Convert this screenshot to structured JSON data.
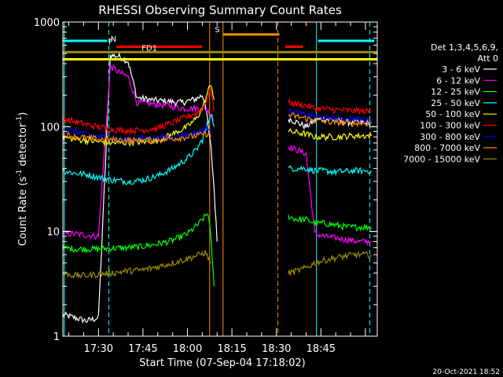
{
  "chart_data": {
    "type": "line",
    "title": "RHESSI Observing Summary Count Rates",
    "xlabel": "Start Time (07-Sep-04 17:18:02)",
    "ylabel_main": "Count Rate (s",
    "ylabel_sup1": "-1",
    "ylabel_mid": " detector",
    "ylabel_sup2": "-1",
    "ylabel_end": ")",
    "yscale": "log",
    "ylim": [
      1,
      1000
    ],
    "xlim_min": [
      18,
      124
    ],
    "x_ticks": [
      {
        "m": 30,
        "label": "17:30"
      },
      {
        "m": 45,
        "label": "17:45"
      },
      {
        "m": 60,
        "label": "18:00"
      },
      {
        "m": 75,
        "label": "18:15"
      },
      {
        "m": 90,
        "label": "18:30"
      },
      {
        "m": 105,
        "label": "18:45"
      }
    ],
    "y_ticks": [
      {
        "v": 1,
        "label": "1"
      },
      {
        "v": 10,
        "label": "10"
      },
      {
        "v": 100,
        "label": "100"
      },
      {
        "v": 1000,
        "label": "1000"
      }
    ],
    "legend_header": [
      "Det 1,3,4,5,6,9,",
      "Att 0"
    ],
    "legend_placement": "right",
    "footer_date": "20-Oct-2021 18:52",
    "series": [
      {
        "name": "3 - 6 keV",
        "color": "#ffffff",
        "points": [
          [
            18,
            1.6
          ],
          [
            22,
            1.5
          ],
          [
            26,
            1.4
          ],
          [
            30,
            1.5
          ],
          [
            34,
            480
          ],
          [
            37,
            470
          ],
          [
            40,
            420
          ],
          [
            43,
            190
          ],
          [
            48,
            180
          ],
          [
            53,
            175
          ],
          [
            58,
            170
          ],
          [
            63,
            185
          ],
          [
            65,
            200
          ],
          [
            66,
            170
          ],
          [
            68,
            60
          ],
          [
            69,
            25
          ],
          [
            70,
            8
          ],
          "gap",
          [
            94,
            120
          ],
          [
            97,
            110
          ],
          [
            100,
            100
          ],
          [
            103,
            115
          ],
          [
            106,
            120
          ],
          [
            110,
            115
          ],
          [
            114,
            110
          ],
          [
            120,
            110
          ],
          [
            122,
            110
          ]
        ]
      },
      {
        "name": "6 - 12 keV",
        "color": "#ff00ff",
        "points": [
          [
            18,
            9.5
          ],
          [
            22,
            9.5
          ],
          [
            26,
            9.2
          ],
          [
            30,
            9.0
          ],
          [
            34,
            380
          ],
          [
            37,
            330
          ],
          [
            40,
            300
          ],
          [
            43,
            170
          ],
          [
            48,
            165
          ],
          [
            53,
            160
          ],
          [
            58,
            150
          ],
          [
            63,
            150
          ],
          [
            66,
            150
          ],
          [
            68,
            130
          ],
          [
            69,
            100
          ],
          "gap",
          [
            94,
            65
          ],
          [
            97,
            60
          ],
          [
            100,
            55
          ],
          [
            103,
            9.5
          ],
          [
            106,
            9
          ],
          [
            112,
            8.5
          ],
          [
            118,
            8
          ],
          [
            122,
            8
          ]
        ]
      },
      {
        "name": "12 - 25 keV",
        "color": "#00ff00",
        "points": [
          [
            18,
            7
          ],
          [
            22,
            6.8
          ],
          [
            26,
            6.8
          ],
          [
            30,
            6.8
          ],
          [
            34,
            6.9
          ],
          [
            40,
            7
          ],
          [
            45,
            7.2
          ],
          [
            50,
            7.6
          ],
          [
            55,
            8.2
          ],
          [
            60,
            9.5
          ],
          [
            64,
            12
          ],
          [
            66,
            14
          ],
          [
            67,
            15
          ],
          [
            68,
            8
          ],
          [
            69,
            3
          ],
          "gap",
          [
            94,
            14
          ],
          [
            97,
            13
          ],
          [
            100,
            13
          ],
          [
            103,
            12
          ],
          [
            106,
            12
          ],
          [
            110,
            11.5
          ],
          [
            114,
            11
          ],
          [
            120,
            11
          ],
          [
            122,
            11
          ]
        ]
      },
      {
        "name": "25 - 50 keV",
        "color": "#00ffff",
        "points": [
          [
            18,
            38
          ],
          [
            22,
            36
          ],
          [
            26,
            35
          ],
          [
            30,
            33
          ],
          [
            35,
            31
          ],
          [
            40,
            30
          ],
          [
            45,
            31
          ],
          [
            50,
            34
          ],
          [
            55,
            40
          ],
          [
            60,
            50
          ],
          [
            63,
            60
          ],
          [
            65,
            75
          ],
          [
            66,
            90
          ],
          [
            67,
            110
          ],
          [
            68,
            140
          ],
          [
            69,
            100
          ],
          "gap",
          [
            94,
            40
          ],
          [
            97,
            40
          ],
          [
            100,
            40
          ],
          [
            103,
            38
          ],
          [
            106,
            38
          ],
          [
            110,
            37
          ],
          [
            116,
            38
          ],
          [
            122,
            38
          ]
        ]
      },
      {
        "name": "50 - 100 keV",
        "color": "#ffff00",
        "points": [
          [
            18,
            80
          ],
          [
            22,
            76
          ],
          [
            26,
            74
          ],
          [
            30,
            72
          ],
          [
            35,
            70
          ],
          [
            40,
            71
          ],
          [
            45,
            72
          ],
          [
            50,
            74
          ],
          [
            55,
            85
          ],
          [
            60,
            100
          ],
          [
            63,
            120
          ],
          [
            65,
            150
          ],
          [
            66,
            180
          ],
          [
            67,
            220
          ],
          [
            68,
            260
          ],
          [
            69,
            180
          ],
          "gap",
          [
            94,
            90
          ],
          [
            97,
            88
          ],
          [
            100,
            85
          ],
          [
            103,
            80
          ],
          [
            106,
            80
          ],
          [
            110,
            80
          ],
          [
            116,
            82
          ],
          [
            122,
            82
          ]
        ]
      },
      {
        "name": "100 - 300 keV",
        "color": "#ff0000",
        "points": [
          [
            18,
            120
          ],
          [
            22,
            112
          ],
          [
            26,
            105
          ],
          [
            30,
            100
          ],
          [
            35,
            94
          ],
          [
            40,
            92
          ],
          [
            45,
            93
          ],
          [
            50,
            97
          ],
          [
            55,
            110
          ],
          [
            60,
            125
          ],
          [
            63,
            135
          ],
          [
            65,
            150
          ],
          [
            66,
            170
          ],
          [
            67,
            200
          ],
          [
            68,
            230
          ],
          [
            69,
            140
          ],
          "gap",
          [
            94,
            170
          ],
          [
            97,
            165
          ],
          [
            100,
            160
          ],
          [
            103,
            150
          ],
          [
            106,
            148
          ],
          [
            110,
            145
          ],
          [
            116,
            142
          ],
          [
            122,
            140
          ]
        ]
      },
      {
        "name": "300 - 800 keV",
        "color": "#0000ff",
        "points": [
          [
            18,
            95
          ],
          [
            22,
            90
          ],
          [
            26,
            85
          ],
          [
            30,
            80
          ],
          [
            35,
            77
          ],
          [
            40,
            75
          ],
          [
            45,
            76
          ],
          [
            50,
            78
          ],
          [
            55,
            80
          ],
          [
            60,
            84
          ],
          [
            63,
            88
          ],
          [
            65,
            92
          ],
          [
            66,
            95
          ],
          [
            67,
            100
          ],
          [
            68,
            95
          ],
          "gap",
          [
            94,
            140
          ],
          [
            97,
            135
          ],
          [
            100,
            130
          ],
          [
            103,
            125
          ],
          [
            106,
            122
          ],
          [
            110,
            120
          ],
          [
            116,
            118
          ],
          [
            122,
            115
          ]
        ]
      },
      {
        "name": "800 - 7000 keV",
        "color": "#ff8c00",
        "points": [
          [
            18,
            85
          ],
          [
            22,
            81
          ],
          [
            26,
            78
          ],
          [
            30,
            76
          ],
          [
            35,
            75
          ],
          [
            40,
            74
          ],
          [
            45,
            74
          ],
          [
            50,
            75
          ],
          [
            55,
            77
          ],
          [
            60,
            80
          ],
          [
            63,
            82
          ],
          [
            65,
            84
          ],
          [
            66,
            85
          ],
          [
            67,
            86
          ],
          [
            68,
            80
          ],
          "gap",
          [
            94,
            130
          ],
          [
            97,
            125
          ],
          [
            100,
            120
          ],
          [
            103,
            115
          ],
          [
            106,
            112
          ],
          [
            110,
            110
          ],
          [
            116,
            108
          ],
          [
            122,
            108
          ]
        ]
      },
      {
        "name": "7000 - 15000 keV",
        "color": "#9b8a00",
        "points": [
          [
            18,
            4
          ],
          [
            22,
            3.8
          ],
          [
            26,
            3.8
          ],
          [
            30,
            3.9
          ],
          [
            34,
            4
          ],
          [
            40,
            4.2
          ],
          [
            45,
            4.3
          ],
          [
            50,
            4.6
          ],
          [
            55,
            5
          ],
          [
            60,
            5.5
          ],
          [
            64,
            6
          ],
          [
            66,
            6.3
          ],
          [
            68,
            5
          ],
          "gap",
          [
            94,
            4
          ],
          [
            97,
            4.2
          ],
          [
            100,
            4.5
          ],
          [
            103,
            5
          ],
          [
            106,
            5.3
          ],
          [
            110,
            5.6
          ],
          [
            116,
            6
          ],
          [
            122,
            6
          ]
        ]
      }
    ],
    "flags": [
      {
        "label": "N",
        "color": "#00ffff",
        "level": 660,
        "segments": [
          [
            18,
            33
          ],
          [
            104,
            123
          ]
        ]
      },
      {
        "label": "F",
        "color": "#ff0000",
        "level": 580,
        "segments": [
          [
            36,
            65
          ],
          [
            93,
            99
          ]
        ]
      },
      {
        "label": "FD1",
        "color": "#9b8a00",
        "level": 515,
        "segments": [
          [
            18,
            124
          ]
        ]
      },
      {
        "label": "S",
        "color": "#ff8c00",
        "level": 760,
        "segments": [
          [
            72,
            91
          ]
        ]
      },
      {
        "label": "",
        "color": "#ffff00",
        "level": 440,
        "segments": [
          [
            18,
            124
          ]
        ]
      }
    ],
    "vertical_markers": [
      {
        "m": 33.5,
        "color": "#00ffff",
        "dash": true
      },
      {
        "m": 67.5,
        "color": "#ff8c00",
        "dash": false
      },
      {
        "m": 72,
        "color": "#ff8c00",
        "dash": false
      },
      {
        "m": 90.5,
        "color": "#ff8c00",
        "dash": true
      },
      {
        "m": 103.5,
        "color": "#00ffff",
        "dash": false
      },
      {
        "m": 121.5,
        "color": "#00ffff",
        "dash": true
      },
      {
        "m": 18.5,
        "color": "#00ffff",
        "dash": false
      }
    ]
  }
}
